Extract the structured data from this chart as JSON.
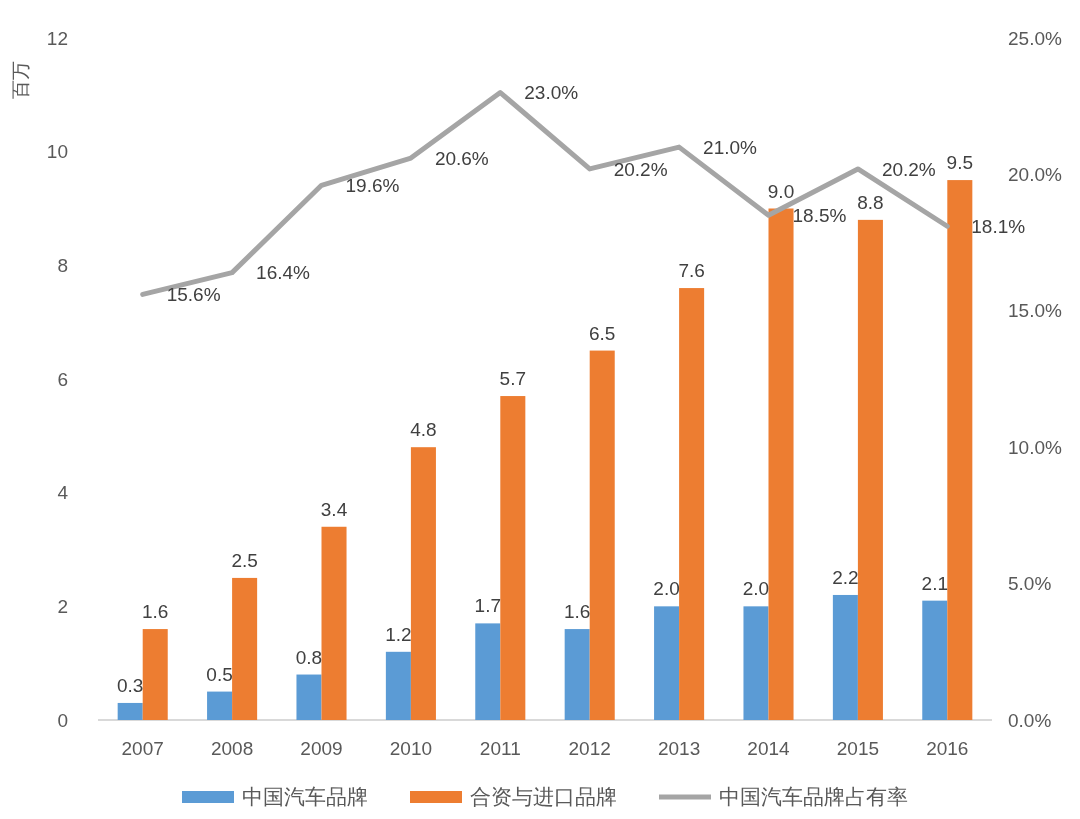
{
  "chart_data": {
    "type": "bar",
    "ylabel": "百万",
    "categories": [
      "2007",
      "2008",
      "2009",
      "2010",
      "2011",
      "2012",
      "2013",
      "2014",
      "2015",
      "2016"
    ],
    "series": [
      {
        "name": "中国汽车品牌",
        "color": "#5b9bd5",
        "values": [
          0.3,
          0.5,
          0.8,
          1.2,
          1.7,
          1.6,
          2.0,
          2.0,
          2.2,
          2.1
        ],
        "value_labels": [
          "0.3",
          "0.5",
          "0.8",
          "1.2",
          "1.7",
          "1.6",
          "2.0",
          "2.0",
          "2.2",
          "2.1"
        ]
      },
      {
        "name": "合资与进口品牌",
        "color": "#ed7d31",
        "values": [
          1.6,
          2.5,
          3.4,
          4.8,
          5.7,
          6.5,
          7.6,
          9.0,
          8.8,
          9.5
        ],
        "value_labels": [
          "1.6",
          "2.5",
          "3.4",
          "4.8",
          "5.7",
          "6.5",
          "7.6",
          "9.0",
          "8.8",
          "9.5"
        ]
      },
      {
        "name": "中国汽车品牌占有率",
        "type": "line",
        "axis": "y2",
        "color": "#a5a5a5",
        "values": [
          15.6,
          16.4,
          19.6,
          20.6,
          23.0,
          20.2,
          21.0,
          18.5,
          20.2,
          18.1
        ],
        "value_labels": [
          "15.6%",
          "16.4%",
          "19.6%",
          "20.6%",
          "23.0%",
          "20.2%",
          "21.0%",
          "18.5%",
          "20.2%",
          "18.1%"
        ]
      }
    ],
    "ylim": [
      0,
      12
    ],
    "yticks": [
      0,
      2,
      4,
      6,
      8,
      10,
      12
    ],
    "y2lim": [
      0,
      25
    ],
    "y2ticks": [
      {
        "value": 0,
        "label": "0.0%"
      },
      {
        "value": 5,
        "label": "5.0%"
      },
      {
        "value": 10,
        "label": "10.0%"
      },
      {
        "value": 15,
        "label": "15.0%"
      },
      {
        "value": 20,
        "label": "20.0%"
      },
      {
        "value": 25,
        "label": "25.0%"
      }
    ],
    "legend": "bottom"
  }
}
